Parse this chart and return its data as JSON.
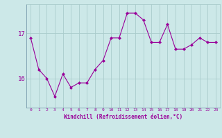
{
  "x": [
    0,
    1,
    2,
    3,
    4,
    5,
    6,
    7,
    8,
    9,
    10,
    11,
    12,
    13,
    14,
    15,
    16,
    17,
    18,
    19,
    20,
    21,
    22,
    23
  ],
  "y": [
    16.9,
    16.2,
    16.0,
    15.6,
    16.1,
    15.8,
    15.9,
    15.9,
    16.2,
    16.4,
    16.9,
    16.9,
    17.45,
    17.45,
    17.3,
    16.8,
    16.8,
    17.2,
    16.65,
    16.65,
    16.75,
    16.9,
    16.8,
    16.8
  ],
  "line_color": "#990099",
  "marker_color": "#990099",
  "bg_color": "#cce8e8",
  "grid_color": "#aacccc",
  "axis_color": "#990099",
  "xlabel": "Windchill (Refroidissement éolien,°C)",
  "ytick_labels": [
    "16",
    "17"
  ],
  "ytick_vals": [
    16,
    17
  ],
  "ylim": [
    15.35,
    17.65
  ],
  "xlim": [
    -0.5,
    23.5
  ]
}
